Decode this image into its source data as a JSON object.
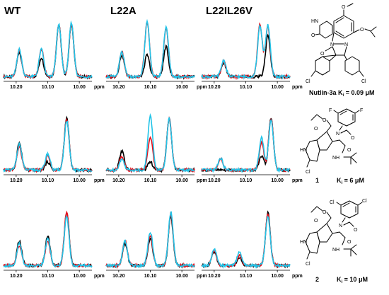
{
  "figure": {
    "column_titles": [
      "WT",
      "L22A",
      "L22IL26V"
    ],
    "ppm_label": "ppm",
    "ppm_ticks": [
      "10.20",
      "10.10",
      "10.00"
    ],
    "series_colors": {
      "black": "#000000",
      "red": "#e8101c",
      "cyan": "#22c4e8"
    },
    "compounds": [
      {
        "name": "Nutlin-3a",
        "label": "Nutlin-3a K",
        "sub": "i",
        "value": " = 0.09 μM"
      },
      {
        "name": "1",
        "label": "1",
        "k": "K",
        "sub": "i",
        "value": " = 6 μM"
      },
      {
        "name": "2",
        "label": "2",
        "k": "K",
        "sub": "i",
        "value": " = 10 μM"
      }
    ],
    "atom_labels": {
      "O": "O",
      "N": "N",
      "NH": "NH",
      "HN": "HN",
      "Cl": "Cl",
      "F": "F"
    }
  },
  "chart_data": {
    "type": "line",
    "xlabel": "ppm",
    "xlim": [
      10.24,
      9.96
    ],
    "x_reversed": true,
    "panels": [
      {
        "row": 0,
        "col": "WT",
        "series": [
          {
            "color": "black",
            "peaks": [
              {
                "x": 10.19,
                "y": 0.45
              },
              {
                "x": 10.12,
                "y": 0.35
              },
              {
                "x": 10.065,
                "y": 0.95
              },
              {
                "x": 10.025,
                "y": 0.95
              }
            ]
          },
          {
            "color": "red",
            "peaks": [
              {
                "x": 10.19,
                "y": 0.48
              },
              {
                "x": 10.12,
                "y": 0.5
              },
              {
                "x": 10.065,
                "y": 0.96
              },
              {
                "x": 10.025,
                "y": 0.96
              }
            ]
          },
          {
            "color": "cyan",
            "peaks": [
              {
                "x": 10.19,
                "y": 0.5
              },
              {
                "x": 10.12,
                "y": 0.5
              },
              {
                "x": 10.065,
                "y": 0.95
              },
              {
                "x": 10.025,
                "y": 0.98
              }
            ]
          }
        ]
      },
      {
        "row": 0,
        "col": "L22A",
        "series": [
          {
            "color": "black",
            "peaks": [
              {
                "x": 10.19,
                "y": 0.4
              },
              {
                "x": 10.11,
                "y": 0.4
              },
              {
                "x": 10.05,
                "y": 0.55
              }
            ]
          },
          {
            "color": "red",
            "peaks": [
              {
                "x": 10.19,
                "y": 0.45
              },
              {
                "x": 10.11,
                "y": 1.0
              },
              {
                "x": 10.05,
                "y": 0.9
              }
            ]
          },
          {
            "color": "cyan",
            "peaks": [
              {
                "x": 10.19,
                "y": 0.45
              },
              {
                "x": 10.11,
                "y": 1.0
              },
              {
                "x": 10.05,
                "y": 0.92
              }
            ]
          }
        ]
      },
      {
        "row": 0,
        "col": "L22IL26V",
        "series": [
          {
            "color": "black",
            "peaks": [
              {
                "x": 10.17,
                "y": 0.25
              },
              {
                "x": 10.03,
                "y": 0.75
              }
            ]
          },
          {
            "color": "red",
            "peaks": [
              {
                "x": 10.17,
                "y": 0.28
              },
              {
                "x": 10.055,
                "y": 0.95
              },
              {
                "x": 10.03,
                "y": 0.92
              }
            ]
          },
          {
            "color": "cyan",
            "peaks": [
              {
                "x": 10.17,
                "y": 0.3
              },
              {
                "x": 10.055,
                "y": 0.92
              },
              {
                "x": 10.03,
                "y": 0.95
              }
            ]
          }
        ]
      },
      {
        "row": 1,
        "col": "WT",
        "series": [
          {
            "color": "black",
            "peaks": [
              {
                "x": 10.19,
                "y": 0.5
              },
              {
                "x": 10.1,
                "y": 0.15
              },
              {
                "x": 10.04,
                "y": 0.95
              }
            ]
          },
          {
            "color": "red",
            "peaks": [
              {
                "x": 10.19,
                "y": 0.42
              },
              {
                "x": 10.1,
                "y": 0.25
              },
              {
                "x": 10.04,
                "y": 0.95
              }
            ]
          },
          {
            "color": "cyan",
            "peaks": [
              {
                "x": 10.19,
                "y": 0.48
              },
              {
                "x": 10.1,
                "y": 0.3
              },
              {
                "x": 10.04,
                "y": 0.9
              }
            ]
          }
        ]
      },
      {
        "row": 1,
        "col": "L22A",
        "series": [
          {
            "color": "black",
            "peaks": [
              {
                "x": 10.19,
                "y": 0.35
              },
              {
                "x": 10.1,
                "y": 0.15
              },
              {
                "x": 10.04,
                "y": 0.95
              }
            ]
          },
          {
            "color": "red",
            "peaks": [
              {
                "x": 10.19,
                "y": 0.25
              },
              {
                "x": 10.1,
                "y": 0.6
              },
              {
                "x": 10.04,
                "y": 0.95
              }
            ]
          },
          {
            "color": "cyan",
            "peaks": [
              {
                "x": 10.19,
                "y": 0.2
              },
              {
                "x": 10.1,
                "y": 1.0
              },
              {
                "x": 10.04,
                "y": 0.95
              }
            ]
          }
        ]
      },
      {
        "row": 1,
        "col": "L22IL26V",
        "series": [
          {
            "color": "black",
            "peaks": [
              {
                "x": 10.05,
                "y": 0.25
              },
              {
                "x": 10.02,
                "y": 0.95
              }
            ]
          },
          {
            "color": "red",
            "peaks": [
              {
                "x": 10.18,
                "y": 0.2
              },
              {
                "x": 10.05,
                "y": 0.5
              },
              {
                "x": 10.02,
                "y": 0.95
              }
            ]
          },
          {
            "color": "cyan",
            "peaks": [
              {
                "x": 10.18,
                "y": 0.22
              },
              {
                "x": 10.05,
                "y": 0.6
              },
              {
                "x": 10.02,
                "y": 0.92
              }
            ]
          }
        ]
      },
      {
        "row": 2,
        "col": "WT",
        "series": [
          {
            "color": "black",
            "peaks": [
              {
                "x": 10.19,
                "y": 0.45
              },
              {
                "x": 10.1,
                "y": 0.55
              },
              {
                "x": 10.04,
                "y": 0.98
              }
            ]
          },
          {
            "color": "red",
            "peaks": [
              {
                "x": 10.19,
                "y": 0.35
              },
              {
                "x": 10.1,
                "y": 0.45
              },
              {
                "x": 10.04,
                "y": 0.98
              }
            ]
          },
          {
            "color": "cyan",
            "peaks": [
              {
                "x": 10.19,
                "y": 0.4
              },
              {
                "x": 10.1,
                "y": 0.5
              },
              {
                "x": 10.04,
                "y": 0.9
              }
            ]
          }
        ]
      },
      {
        "row": 2,
        "col": "L22A",
        "series": [
          {
            "color": "black",
            "peaks": [
              {
                "x": 10.18,
                "y": 0.4
              },
              {
                "x": 10.1,
                "y": 0.5
              },
              {
                "x": 10.035,
                "y": 0.9
              }
            ]
          },
          {
            "color": "red",
            "peaks": [
              {
                "x": 10.18,
                "y": 0.45
              },
              {
                "x": 10.1,
                "y": 0.55
              },
              {
                "x": 10.035,
                "y": 0.95
              }
            ]
          },
          {
            "color": "cyan",
            "peaks": [
              {
                "x": 10.18,
                "y": 0.45
              },
              {
                "x": 10.1,
                "y": 0.62
              },
              {
                "x": 10.035,
                "y": 0.98
              }
            ]
          }
        ]
      },
      {
        "row": 2,
        "col": "L22IL26V",
        "series": [
          {
            "color": "black",
            "peaks": [
              {
                "x": 10.2,
                "y": 0.25
              },
              {
                "x": 10.12,
                "y": 0.15
              },
              {
                "x": 10.03,
                "y": 0.98
              }
            ]
          },
          {
            "color": "red",
            "peaks": [
              {
                "x": 10.2,
                "y": 0.28
              },
              {
                "x": 10.12,
                "y": 0.18
              },
              {
                "x": 10.03,
                "y": 0.95
              }
            ]
          },
          {
            "color": "cyan",
            "peaks": [
              {
                "x": 10.2,
                "y": 0.3
              },
              {
                "x": 10.12,
                "y": 0.25
              },
              {
                "x": 10.03,
                "y": 0.92
              }
            ]
          }
        ]
      }
    ]
  }
}
